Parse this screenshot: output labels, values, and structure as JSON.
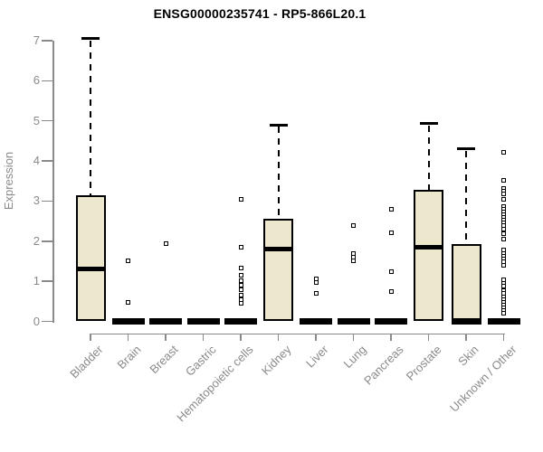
{
  "title": "ENSG00000235741 - RP5-866L20.1",
  "colors": {
    "box_fill": "#EDE7CE",
    "stroke": "#000000",
    "axis": "#8A8A8A",
    "title": "#000000",
    "background": "#FFFFFF"
  },
  "chart_data": {
    "type": "boxplot",
    "title": "ENSG00000235741 - RP5-866L20.1",
    "xlabel": "",
    "ylabel": "Expression",
    "ylim": [
      0,
      7
    ],
    "y_ticks": [
      "0",
      "1",
      "2",
      "3",
      "4",
      "5",
      "6",
      "7"
    ],
    "grid": false,
    "legend": "none",
    "categories": [
      "Bladder",
      "Brain",
      "Breast",
      "Gastric",
      "Hematopoietic cells",
      "Kidney",
      "Liver",
      "Lung",
      "Pancreas",
      "Prostate",
      "Skin",
      "Unknown / Other"
    ],
    "boxes": [
      {
        "category": "Bladder",
        "low": 0,
        "q1": 0,
        "median": 1.3,
        "q3": 3.15,
        "high": 7.05,
        "outliers": []
      },
      {
        "category": "Brain",
        "low": 0,
        "q1": 0,
        "median": 0,
        "q3": 0,
        "high": 0,
        "outliers": [
          1.5,
          0.48
        ]
      },
      {
        "category": "Breast",
        "low": 0,
        "q1": 0,
        "median": 0,
        "q3": 0,
        "high": 0,
        "outliers": [
          1.95
        ]
      },
      {
        "category": "Gastric",
        "low": 0,
        "q1": 0,
        "median": 0,
        "q3": 0,
        "high": 0,
        "outliers": []
      },
      {
        "category": "Hematopoietic cells",
        "low": 0,
        "q1": 0,
        "median": 0,
        "q3": 0,
        "high": 0,
        "outliers": [
          3.05,
          1.85,
          1.34,
          1.15,
          1.02,
          0.9,
          0.78,
          0.66,
          0.55,
          0.44
        ]
      },
      {
        "category": "Kidney",
        "low": 0,
        "q1": 0,
        "median": 1.8,
        "q3": 2.57,
        "high": 4.9,
        "outliers": []
      },
      {
        "category": "Liver",
        "low": 0,
        "q1": 0,
        "median": 0,
        "q3": 0,
        "high": 0,
        "outliers": [
          1.07,
          0.98,
          0.7
        ]
      },
      {
        "category": "Lung",
        "low": 0,
        "q1": 0,
        "median": 0,
        "q3": 0,
        "high": 0,
        "outliers": [
          2.4,
          1.68,
          1.6,
          1.52
        ]
      },
      {
        "category": "Pancreas",
        "low": 0,
        "q1": 0,
        "median": 0,
        "q3": 0,
        "high": 0,
        "outliers": [
          2.8,
          2.2,
          1.23,
          0.74
        ]
      },
      {
        "category": "Prostate",
        "low": 0,
        "q1": 0,
        "median": 1.85,
        "q3": 3.28,
        "high": 4.93,
        "outliers": []
      },
      {
        "category": "Skin",
        "low": 0,
        "q1": 0,
        "median": 0,
        "q3": 1.93,
        "high": 4.3,
        "outliers": []
      },
      {
        "category": "Unknown / Other",
        "low": 0,
        "q1": 0,
        "median": 0,
        "q3": 0,
        "high": 0,
        "outliers": [
          4.22,
          3.52,
          3.32,
          3.25,
          3.17,
          3.05,
          2.87,
          2.8,
          2.73,
          2.66,
          2.6,
          2.53,
          2.45,
          2.38,
          2.3,
          2.19,
          2.05,
          1.78,
          1.7,
          1.63,
          1.55,
          1.48,
          1.4,
          1.03,
          0.95,
          0.88,
          0.76,
          0.69,
          0.61,
          0.54,
          0.48,
          0.4,
          0.33,
          0.26,
          0.2
        ]
      }
    ]
  }
}
